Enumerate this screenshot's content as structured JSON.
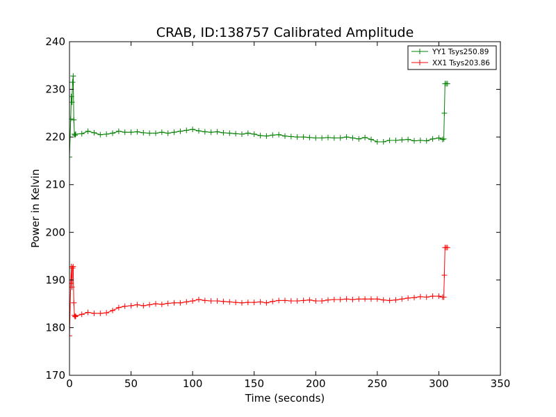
{
  "chart_data": {
    "type": "line",
    "title": "CRAB, ID:138757 Calibrated Amplitude",
    "xlabel": "Time (seconds)",
    "ylabel": "Power in Kelvin",
    "xlim": [
      0,
      350
    ],
    "ylim": [
      170,
      240
    ],
    "xticks": [
      0,
      50,
      100,
      150,
      200,
      250,
      300,
      350
    ],
    "yticks": [
      170,
      180,
      190,
      200,
      210,
      220,
      230,
      240
    ],
    "grid": false,
    "legend_position": "top-right",
    "series": [
      {
        "name": "YY1 Tsys250.89",
        "color": "#008000",
        "marker": "+",
        "x": [
          0,
          1,
          1.5,
          2,
          2.5,
          3,
          3.5,
          4,
          4.5,
          5,
          10,
          15,
          20,
          25,
          30,
          35,
          40,
          45,
          50,
          55,
          60,
          65,
          70,
          75,
          80,
          85,
          90,
          95,
          100,
          105,
          110,
          115,
          120,
          125,
          130,
          135,
          140,
          145,
          150,
          155,
          160,
          165,
          170,
          175,
          180,
          185,
          190,
          195,
          200,
          205,
          210,
          215,
          220,
          225,
          230,
          235,
          240,
          245,
          250,
          255,
          260,
          265,
          270,
          275,
          280,
          285,
          290,
          295,
          300,
          303,
          304,
          304.5,
          305,
          306,
          307
        ],
        "y": [
          215.8,
          223.8,
          228.5,
          227.3,
          231.5,
          232.8,
          223.6,
          220.6,
          220.4,
          220.6,
          220.7,
          221.2,
          220.9,
          220.5,
          220.6,
          220.8,
          221.2,
          221.0,
          221.0,
          221.1,
          220.9,
          220.8,
          220.8,
          221.0,
          220.8,
          221.0,
          221.2,
          221.4,
          221.6,
          221.3,
          221.1,
          221.0,
          221.1,
          220.9,
          220.8,
          220.7,
          220.6,
          220.8,
          220.6,
          220.3,
          220.2,
          220.4,
          220.5,
          220.2,
          220.1,
          220.0,
          220.0,
          219.9,
          219.8,
          219.8,
          219.9,
          219.8,
          219.8,
          220.0,
          219.8,
          219.6,
          219.9,
          219.5,
          219.0,
          219.0,
          219.3,
          219.3,
          219.4,
          219.5,
          219.2,
          219.3,
          219.2,
          219.6,
          219.8,
          219.5,
          219.6,
          225.0,
          231.2,
          231.2,
          231.2
        ]
      },
      {
        "name": "XX1 Tsys203.86",
        "color": "#ff0000",
        "marker": "+",
        "x": [
          0,
          1,
          1.5,
          2,
          2.5,
          3,
          3.5,
          4,
          4.5,
          5,
          10,
          15,
          20,
          25,
          30,
          35,
          40,
          45,
          50,
          55,
          60,
          65,
          70,
          75,
          80,
          85,
          90,
          95,
          100,
          105,
          110,
          115,
          120,
          125,
          130,
          135,
          140,
          145,
          150,
          155,
          160,
          165,
          170,
          175,
          180,
          185,
          190,
          195,
          200,
          205,
          210,
          215,
          220,
          225,
          230,
          235,
          240,
          245,
          250,
          255,
          260,
          265,
          270,
          275,
          280,
          285,
          290,
          295,
          300,
          303,
          304,
          304.5,
          305,
          306,
          307
        ],
        "y": [
          178.3,
          189.3,
          192.8,
          188.5,
          192.5,
          192.8,
          185.2,
          182.6,
          182.3,
          182.4,
          182.8,
          183.2,
          183.0,
          183.0,
          183.1,
          183.6,
          184.2,
          184.5,
          184.6,
          184.8,
          184.6,
          184.8,
          185.0,
          184.9,
          185.1,
          185.2,
          185.2,
          185.4,
          185.6,
          185.9,
          185.7,
          185.6,
          185.6,
          185.5,
          185.4,
          185.3,
          185.2,
          185.3,
          185.3,
          185.4,
          185.2,
          185.5,
          185.7,
          185.7,
          185.6,
          185.6,
          185.7,
          185.8,
          185.6,
          185.6,
          185.8,
          185.9,
          185.9,
          186.0,
          185.9,
          186.0,
          186.0,
          186.0,
          186.0,
          185.8,
          185.7,
          185.8,
          186.0,
          186.2,
          186.3,
          186.5,
          186.4,
          186.6,
          186.6,
          186.4,
          186.4,
          191.0,
          196.8,
          196.8,
          196.8
        ]
      }
    ]
  }
}
